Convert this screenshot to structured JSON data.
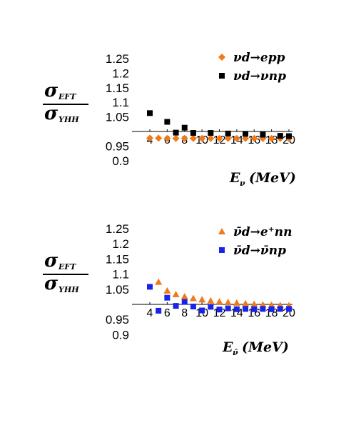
{
  "chart_data": [
    {
      "type": "scatter",
      "ylabel_num": "σ",
      "ylabel_num_sub": "EFT",
      "ylabel_den": "σ",
      "ylabel_den_sub": "YHH",
      "xlabel_main": "E",
      "xlabel_sub": "ν",
      "xlabel_unit": "(MeV)",
      "yticks": [
        "1.25",
        "1.2",
        "1.15",
        "1.1",
        "1.05",
        "0.95",
        "0.9"
      ],
      "ytick_values": [
        1.25,
        1.2,
        1.15,
        1.1,
        1.05,
        0.95,
        0.9
      ],
      "xticks": [
        "4",
        "6",
        "8",
        "10",
        "12",
        "14",
        "16",
        "18",
        "20"
      ],
      "xtick_values": [
        4,
        6,
        8,
        10,
        12,
        14,
        16,
        18,
        20
      ],
      "ylim": [
        0.9,
        1.25
      ],
      "xlim": [
        4,
        20
      ],
      "baseline": 1.0,
      "series": [
        {
          "name": "νd→epp",
          "marker": "diamond",
          "color": "#f07a1a",
          "x": [
            4,
            5,
            6,
            7,
            8,
            9,
            10,
            11,
            12,
            13,
            14,
            15,
            16,
            17,
            18,
            19,
            20
          ],
          "y": [
            0.977,
            0.977,
            0.976,
            0.976,
            0.976,
            0.976,
            0.976,
            0.976,
            0.976,
            0.976,
            0.976,
            0.976,
            0.976,
            0.976,
            0.976,
            0.976,
            0.976
          ]
        },
        {
          "name": "νd→νnp",
          "marker": "square",
          "color": "#000000",
          "x": [
            4,
            6,
            7,
            8,
            9,
            11,
            13,
            15,
            17,
            19,
            20
          ],
          "y": [
            1.063,
            1.033,
            0.996,
            1.013,
            0.995,
            0.995,
            0.993,
            0.992,
            0.989,
            0.985,
            0.984
          ]
        }
      ]
    },
    {
      "type": "scatter",
      "ylabel_num": "σ",
      "ylabel_num_sub": "EFT",
      "ylabel_den": "σ",
      "ylabel_den_sub": "YHH",
      "xlabel_main": "E",
      "xlabel_sub": "ν̄",
      "xlabel_unit": "(MeV)",
      "yticks": [
        "1.25",
        "1.2",
        "1.15",
        "1.1",
        "1.05",
        "0.95",
        "0.9"
      ],
      "ytick_values": [
        1.25,
        1.2,
        1.15,
        1.1,
        1.05,
        0.95,
        0.9
      ],
      "xticks": [
        "4",
        "6",
        "8",
        "10",
        "12",
        "14",
        "16",
        "18",
        "20"
      ],
      "xtick_values": [
        4,
        6,
        8,
        10,
        12,
        14,
        16,
        18,
        20
      ],
      "ylim": [
        0.9,
        1.25
      ],
      "xlim": [
        4,
        20
      ],
      "baseline": 1.0,
      "series": [
        {
          "name": "ν̄d→e⁺nn",
          "marker": "triangle",
          "color": "#f07a1a",
          "x": [
            5,
            6,
            7,
            8,
            9,
            10,
            11,
            12,
            13,
            14,
            15,
            16,
            17,
            18,
            19,
            20
          ],
          "y": [
            1.074,
            1.045,
            1.033,
            1.026,
            1.02,
            1.016,
            1.012,
            1.009,
            1.007,
            1.005,
            1.003,
            1.001,
            0.999,
            0.998,
            0.997,
            0.996
          ]
        },
        {
          "name": "ν̄d→ν̄np",
          "marker": "square",
          "color": "#1a24e8",
          "x": [
            4,
            5,
            6,
            7,
            8,
            9,
            10,
            11,
            12,
            13,
            14,
            15,
            16,
            17,
            18,
            19,
            20
          ],
          "y": [
            1.058,
            0.979,
            1.022,
            0.995,
            1.008,
            0.993,
            0.98,
            0.992,
            0.983,
            0.987,
            0.984,
            0.985,
            0.984,
            0.985,
            0.984,
            0.985,
            0.985
          ]
        }
      ]
    }
  ]
}
